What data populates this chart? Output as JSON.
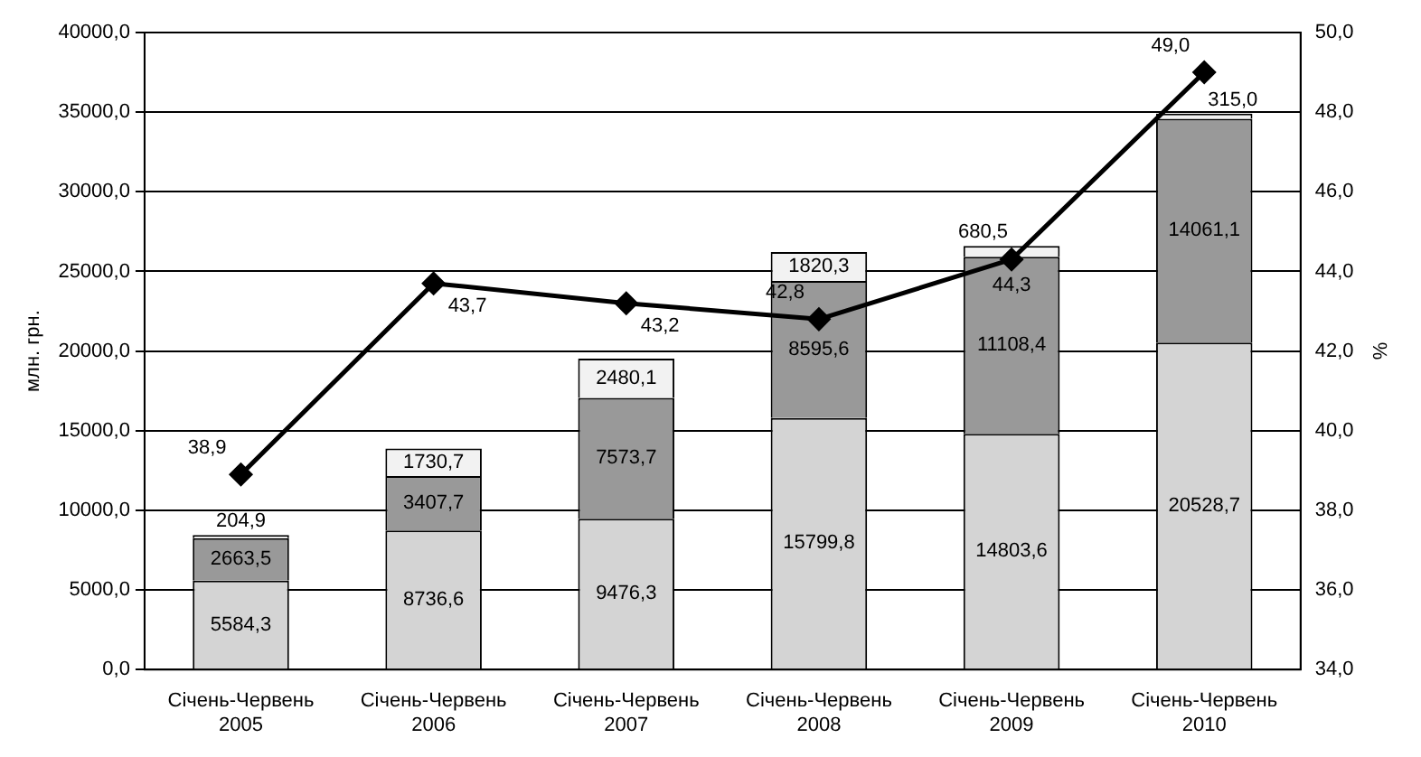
{
  "chart_data": {
    "type": "bar",
    "stacked": true,
    "categories": [
      "Січень-Червень 2005",
      "Січень-Червень 2006",
      "Січень-Червень 2007",
      "Січень-Червень 2008",
      "Січень-Червень 2009",
      "Січень-Червень 2010"
    ],
    "ylabel": "млн. грн.",
    "y2label": "%",
    "grid": "y",
    "marker": "diamond",
    "ylim": [
      0,
      40000
    ],
    "yticks": [
      {
        "value": 0,
        "label": "0,0"
      },
      {
        "value": 5000,
        "label": "5000,0"
      },
      {
        "value": 10000,
        "label": "10000,0"
      },
      {
        "value": 15000,
        "label": "15000,0"
      },
      {
        "value": 20000,
        "label": "20000,0"
      },
      {
        "value": 25000,
        "label": "25000,0"
      },
      {
        "value": 30000,
        "label": "30000,0"
      },
      {
        "value": 35000,
        "label": "35000,0"
      },
      {
        "value": 40000,
        "label": "40000,0"
      }
    ],
    "y2lim": [
      34,
      50
    ],
    "y2ticks": [
      {
        "value": 34,
        "label": "34,0"
      },
      {
        "value": 36,
        "label": "36,0"
      },
      {
        "value": 38,
        "label": "38,0"
      },
      {
        "value": 40,
        "label": "40,0"
      },
      {
        "value": 42,
        "label": "42,0"
      },
      {
        "value": 44,
        "label": "44,0"
      },
      {
        "value": 46,
        "label": "46,0"
      },
      {
        "value": 48,
        "label": "48,0"
      },
      {
        "value": 50,
        "label": "50,0"
      }
    ],
    "series": [
      {
        "color": "#d4d4d4",
        "values": [
          5584.3,
          8736.6,
          9476.3,
          15799.8,
          14803.6,
          20528.7
        ],
        "value_labels": [
          "5584,3",
          "8736,6",
          "9476,3",
          "15799,8",
          "14803,6",
          "20528,7"
        ]
      },
      {
        "color": "#999999",
        "values": [
          2663.5,
          3407.7,
          7573.7,
          8595.6,
          11108.4,
          14061.1
        ],
        "value_labels": [
          "2663,5",
          "3407,7",
          "7573,7",
          "8595,6",
          "11108,4",
          "14061,1"
        ]
      },
      {
        "color": "#f2f2f2",
        "values": [
          204.9,
          1730.7,
          2480.1,
          1820.3,
          680.5,
          315.0
        ],
        "value_labels": [
          "204,9",
          "1730,7",
          "2480,1",
          "1820,3",
          "680,5",
          "315,0"
        ]
      },
      {
        "type": "line",
        "axis": "y2",
        "color": "#000000",
        "values": [
          38.9,
          43.7,
          43.2,
          42.8,
          44.3,
          49.0
        ],
        "value_labels": [
          "38,9",
          "43,7",
          "43,2",
          "42,8",
          "44,3",
          "49,0"
        ]
      }
    ]
  }
}
